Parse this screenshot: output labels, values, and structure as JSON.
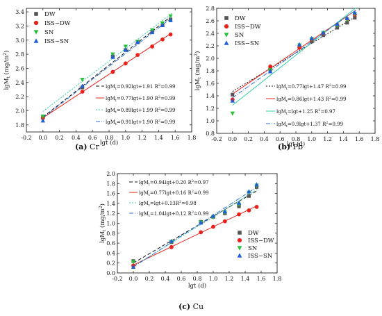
{
  "colors": {
    "DW": "#555555",
    "ISS-DW": "#e8221b",
    "SN": "#26c03a",
    "ISS-SN": "#1f5fd8",
    "fit_DW": "#111111",
    "fit_ISS-DW": "#e8221b",
    "fit_SN": "#2ecfa8",
    "fit_ISS-SN": "#2a6fd6"
  },
  "chart_data": [
    {
      "id": "cr",
      "type": "scatter",
      "caption_letter": "(a)",
      "caption_text": "Cr",
      "xlabel": "lgt (d)",
      "ylabel_main": "lgM",
      "ylabel_sub": "t",
      "ylabel_unit": " (mg/m",
      "ylabel_sup": "2",
      "ylabel_close": ")",
      "xlim": [
        -0.2,
        1.8
      ],
      "ylim": [
        1.7,
        3.45
      ],
      "xticks": [
        "-0.2",
        "0.0",
        "0.2",
        "0.4",
        "0.6",
        "0.8",
        "1.0",
        "1.2",
        "1.4",
        "1.6",
        "1.8"
      ],
      "xtick_values": [
        -0.2,
        0.0,
        0.2,
        0.4,
        0.6,
        0.8,
        1.0,
        1.2,
        1.4,
        1.6,
        1.8
      ],
      "yticks": [
        "1.8",
        "2.0",
        "2.2",
        "2.4",
        "2.6",
        "2.8",
        "3.0",
        "3.2",
        "3.4"
      ],
      "ytick_values": [
        1.8,
        2.0,
        2.2,
        2.4,
        2.6,
        2.8,
        3.0,
        3.2,
        3.4
      ],
      "legend_position": "top-left",
      "series": [
        {
          "name": "DW",
          "marker": "square",
          "x": [
            0,
            0.477,
            0.845,
            1.0,
            1.146,
            1.322,
            1.447,
            1.544
          ],
          "y": [
            1.9,
            2.33,
            2.77,
            2.86,
            2.97,
            3.12,
            3.21,
            3.29
          ]
        },
        {
          "name": "ISS−DW",
          "marker": "circle",
          "x": [
            0,
            0.477,
            0.845,
            1.0,
            1.146,
            1.322,
            1.447,
            1.544
          ],
          "y": [
            1.9,
            2.27,
            2.55,
            2.67,
            2.79,
            2.91,
            3.01,
            3.08
          ]
        },
        {
          "name": "SN",
          "marker": "triangle-down",
          "x": [
            0,
            0.477,
            0.845,
            1.0,
            1.146,
            1.322,
            1.447,
            1.544
          ],
          "y": [
            1.92,
            2.44,
            2.8,
            2.91,
            2.98,
            3.14,
            3.24,
            3.34
          ]
        },
        {
          "name": "ISS−SN",
          "marker": "triangle-up",
          "x": [
            0,
            0.477,
            0.845,
            1.0,
            1.146,
            1.322,
            1.447,
            1.544
          ],
          "y": [
            1.86,
            2.35,
            2.76,
            2.86,
            2.97,
            3.11,
            3.21,
            3.28
          ]
        }
      ],
      "fits": [
        {
          "slope": 0.92,
          "intercept": 1.91,
          "dash": "5,3",
          "color_key": "fit_DW",
          "pre": "lgM",
          "sub": "t",
          "eq": "=0.92lgt+1.91 R",
          "sup": "2",
          "post": "=0.99"
        },
        {
          "slope": 0.77,
          "intercept": 1.9,
          "dash": "",
          "color_key": "fit_ISS-DW",
          "pre": "lgM",
          "sub": "t",
          "eq": "=0.77lgt+1.90 R",
          "sup": "2",
          "post": "=0.99"
        },
        {
          "slope": 0.89,
          "intercept": 1.99,
          "dash": "2,2",
          "color_key": "fit_SN",
          "pre": "lgM",
          "sub": "t",
          "eq": "=0.89lgt+1.99 R",
          "sup": "2",
          "post": "=0.99"
        },
        {
          "slope": 0.91,
          "intercept": 1.9,
          "dash": "6,2,1,2",
          "color_key": "fit_ISS-SN",
          "pre": "lgM",
          "sub": "t",
          "eq": "=0.91lgt+1.90 R",
          "sup": "2",
          "post": "=0.99"
        }
      ]
    },
    {
      "id": "pb",
      "type": "scatter",
      "caption_letter": "(b)",
      "caption_text": "Pb",
      "xlabel": "lgt (d)",
      "ylabel_main": "lgM",
      "ylabel_sub": "t",
      "ylabel_unit": " (mg/m",
      "ylabel_sup": "2",
      "ylabel_close": ")",
      "xlim": [
        -0.2,
        1.8
      ],
      "ylim": [
        0.8,
        2.8
      ],
      "xticks": [
        "-0.2",
        "0.0",
        "0.2",
        "0.4",
        "0.6",
        "0.8",
        "1.0",
        "1.2",
        "1.4",
        "1.6",
        "1.8"
      ],
      "xtick_values": [
        -0.2,
        0.0,
        0.2,
        0.4,
        0.6,
        0.8,
        1.0,
        1.2,
        1.4,
        1.6,
        1.8
      ],
      "yticks": [
        "0.8",
        "1.0",
        "1.2",
        "1.4",
        "1.6",
        "1.8",
        "2.0",
        "2.2",
        "2.4",
        "2.6",
        "2.8"
      ],
      "ytick_values": [
        0.8,
        1.0,
        1.2,
        1.4,
        1.6,
        1.8,
        2.0,
        2.2,
        2.4,
        2.6,
        2.8
      ],
      "legend_position": "top-left",
      "series": [
        {
          "name": "DW",
          "marker": "square",
          "x": [
            0,
            0.477,
            0.845,
            1.0,
            1.146,
            1.322,
            1.447,
            1.544
          ],
          "y": [
            1.42,
            1.82,
            2.18,
            2.27,
            2.37,
            2.49,
            2.57,
            2.65
          ]
        },
        {
          "name": "ISS−DW",
          "marker": "circle",
          "x": [
            0,
            0.477,
            0.845,
            1.0,
            1.146,
            1.322,
            1.447,
            1.544
          ],
          "y": [
            1.34,
            1.87,
            2.17,
            2.3,
            2.4,
            2.54,
            2.63,
            2.7
          ]
        },
        {
          "name": "SN",
          "marker": "triangle-down",
          "x": [
            0,
            0.477,
            0.845,
            1.0,
            1.146,
            1.322,
            1.447,
            1.544
          ],
          "y": [
            1.12,
            1.81,
            2.21,
            2.31,
            2.41,
            2.53,
            2.62,
            2.71
          ]
        },
        {
          "name": "ISS−SN",
          "marker": "triangle-up",
          "x": [
            0,
            0.477,
            0.845,
            1.0,
            1.146,
            1.322,
            1.447,
            1.544
          ],
          "y": [
            1.32,
            1.79,
            2.22,
            2.32,
            2.41,
            2.55,
            2.64,
            2.73
          ]
        }
      ],
      "fits": [
        {
          "slope": 0.77,
          "intercept": 1.47,
          "dash": "2,2",
          "color_key": "fit_DW",
          "pre": "lgM",
          "sub": "t",
          "eq": "=0.77lgt+1.47 R",
          "sup": "2",
          "post": "=0.99"
        },
        {
          "slope": 0.86,
          "intercept": 1.43,
          "dash": "",
          "color_key": "fit_ISS-DW",
          "pre": "lgM",
          "sub": "t",
          "eq": "=0.86lgt+1.43 R",
          "sup": "2",
          "post": "=0.99"
        },
        {
          "slope": 1.0,
          "intercept": 1.25,
          "dash": "",
          "color_key": "fit_SN",
          "pre": "lgM",
          "sub": "t",
          "eq": "=lgt+1.25 R",
          "sup": "2",
          "post": "=0.97"
        },
        {
          "slope": 0.9,
          "intercept": 1.37,
          "dash": "6,2,1,2",
          "color_key": "fit_ISS-SN",
          "pre": "lgM",
          "sub": "t",
          "eq": "=0.9lgt+1.37 R",
          "sup": "2",
          "post": "=0.99"
        }
      ]
    },
    {
      "id": "cu",
      "type": "scatter",
      "caption_letter": "(c)",
      "caption_text": "Cu",
      "xlabel": "lgt (d)",
      "ylabel_main": "lgM",
      "ylabel_sub": "t",
      "ylabel_unit": " (mg/m",
      "ylabel_sup": "2",
      "ylabel_close": ")",
      "xlim": [
        -0.2,
        1.8
      ],
      "ylim": [
        0.0,
        2.0
      ],
      "xticks": [
        "-0.2",
        "0.0",
        "0.2",
        "0.4",
        "0.6",
        "0.8",
        "1.0",
        "1.2",
        "1.4",
        "1.6",
        "1.8"
      ],
      "xtick_values": [
        -0.2,
        0.0,
        0.2,
        0.4,
        0.6,
        0.8,
        1.0,
        1.2,
        1.4,
        1.6,
        1.8
      ],
      "yticks": [
        "0.0",
        "0.2",
        "0.4",
        "0.6",
        "0.8",
        "1.0",
        "1.2",
        "1.4",
        "1.6",
        "1.8",
        "2.0"
      ],
      "ytick_values": [
        0.0,
        0.2,
        0.4,
        0.6,
        0.8,
        1.0,
        1.2,
        1.4,
        1.6,
        1.8,
        2.0
      ],
      "legend_position": "bottom-right",
      "series": [
        {
          "name": "DW",
          "marker": "square",
          "x": [
            0,
            0.477,
            0.845,
            1.0,
            1.146,
            1.322,
            1.447,
            1.544
          ],
          "y": [
            0.24,
            0.62,
            1.03,
            1.13,
            1.2,
            1.34,
            1.55,
            1.73
          ]
        },
        {
          "name": "ISS−DW",
          "marker": "circle",
          "x": [
            0,
            0.477,
            0.845,
            1.0,
            1.146,
            1.322,
            1.447,
            1.544
          ],
          "y": [
            0.15,
            0.52,
            0.82,
            0.93,
            1.04,
            1.18,
            1.26,
            1.33
          ]
        },
        {
          "name": "SN",
          "marker": "triangle-down",
          "x": [
            0,
            0.477,
            0.845,
            1.0,
            1.146,
            1.322,
            1.447,
            1.544
          ],
          "y": [
            0.22,
            0.63,
            1.02,
            1.12,
            1.22,
            1.38,
            1.62,
            1.76
          ]
        },
        {
          "name": "ISS−SN",
          "marker": "triangle-up",
          "x": [
            0,
            0.477,
            0.845,
            1.0,
            1.146,
            1.322,
            1.447,
            1.544
          ],
          "y": [
            0.12,
            0.64,
            1.01,
            1.15,
            1.24,
            1.41,
            1.64,
            1.78
          ]
        }
      ],
      "fits": [
        {
          "slope": 0.94,
          "intercept": 0.2,
          "dash": "5,3",
          "color_key": "fit_DW",
          "pre": "lgM",
          "sub": "t",
          "eq": "=0.94lgt+0.20 R",
          "sup": "2",
          "post": "=0.97"
        },
        {
          "slope": 0.77,
          "intercept": 0.16,
          "dash": "",
          "color_key": "fit_ISS-DW",
          "pre": "lgM",
          "sub": "t",
          "eq": "=0.77lgt+0.16 R",
          "sup": "2",
          "post": "=0.99"
        },
        {
          "slope": 1.0,
          "intercept": 0.13,
          "dash": "2,2",
          "color_key": "fit_SN",
          "pre": "lgM",
          "sub": "t",
          "eq": "=lgt+0.13R",
          "sup": "2",
          "post": "=0.98"
        },
        {
          "slope": 1.04,
          "intercept": 0.12,
          "dash": "6,2,1,2",
          "color_key": "fit_ISS-SN",
          "pre": "lgM",
          "sub": "t",
          "eq": "=1.04lgt+0.12 R",
          "sup": "2",
          "post": "=0.99"
        }
      ]
    }
  ]
}
